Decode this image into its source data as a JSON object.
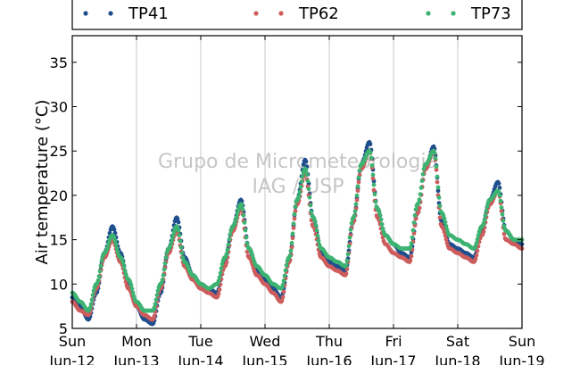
{
  "chart_data": {
    "type": "scatter",
    "ylabel": "Air temperature (°C)",
    "xlabel": "",
    "title": "",
    "ylim": [
      5,
      38
    ],
    "yticks": [
      5,
      10,
      15,
      20,
      25,
      30,
      35
    ],
    "xlim": [
      "2016-06-12",
      "2016-06-19"
    ],
    "x_tick_labels": [
      {
        "day": "Sun",
        "date": "Jun-12"
      },
      {
        "day": "Mon",
        "date": "Jun-13"
      },
      {
        "day": "Tue",
        "date": "Jun-14"
      },
      {
        "day": "Wed",
        "date": "Jun-15"
      },
      {
        "day": "Thu",
        "date": "Jun-16"
      },
      {
        "day": "Fri",
        "date": "Jun-17"
      },
      {
        "day": "Sat",
        "date": "Jun-18"
      },
      {
        "day": "Sun",
        "date": "Jun-19"
      }
    ],
    "grid": "vertical",
    "legend_position": "top",
    "watermark": [
      "Grupo de Micrometeorologia",
      "IAG / USP"
    ],
    "series": [
      {
        "name": "TP41",
        "color": "#1f4e8c",
        "points": [
          [
            "2016-06-12 00:00",
            8.5
          ],
          [
            "2016-06-12 03:00",
            7.5
          ],
          [
            "2016-06-12 06:00",
            6.0
          ],
          [
            "2016-06-12 09:00",
            9.0
          ],
          [
            "2016-06-12 12:00",
            13.5
          ],
          [
            "2016-06-12 15:00",
            16.5
          ],
          [
            "2016-06-12 18:00",
            13.5
          ],
          [
            "2016-06-12 21:00",
            10.0
          ],
          [
            "2016-06-13 00:00",
            7.5
          ],
          [
            "2016-06-13 03:00",
            6.0
          ],
          [
            "2016-06-13 06:00",
            5.5
          ],
          [
            "2016-06-13 09:00",
            9.0
          ],
          [
            "2016-06-13 12:00",
            14.0
          ],
          [
            "2016-06-13 15:00",
            17.5
          ],
          [
            "2016-06-13 18:00",
            13.0
          ],
          [
            "2016-06-13 21:00",
            11.0
          ],
          [
            "2016-06-14 00:00",
            10.0
          ],
          [
            "2016-06-14 03:00",
            9.5
          ],
          [
            "2016-06-14 06:00",
            9.0
          ],
          [
            "2016-06-14 09:00",
            12.5
          ],
          [
            "2016-06-14 12:00",
            16.5
          ],
          [
            "2016-06-14 15:00",
            19.5
          ],
          [
            "2016-06-14 18:00",
            14.0
          ],
          [
            "2016-06-14 21:00",
            11.5
          ],
          [
            "2016-06-15 00:00",
            10.5
          ],
          [
            "2016-06-15 03:00",
            9.5
          ],
          [
            "2016-06-15 06:00",
            8.5
          ],
          [
            "2016-06-15 09:00",
            12.5
          ],
          [
            "2016-06-15 12:00",
            19.5
          ],
          [
            "2016-06-15 15:00",
            24.0
          ],
          [
            "2016-06-15 18:00",
            17.5
          ],
          [
            "2016-06-15 21:00",
            13.5
          ],
          [
            "2016-06-16 00:00",
            12.5
          ],
          [
            "2016-06-16 03:00",
            12.0
          ],
          [
            "2016-06-16 06:00",
            11.5
          ],
          [
            "2016-06-16 09:00",
            17.0
          ],
          [
            "2016-06-16 12:00",
            23.5
          ],
          [
            "2016-06-16 15:00",
            26.0
          ],
          [
            "2016-06-16 18:00",
            18.5
          ],
          [
            "2016-06-16 21:00",
            15.5
          ],
          [
            "2016-06-17 00:00",
            14.5
          ],
          [
            "2016-06-17 03:00",
            13.5
          ],
          [
            "2016-06-17 06:00",
            13.0
          ],
          [
            "2016-06-17 09:00",
            18.0
          ],
          [
            "2016-06-17 12:00",
            23.0
          ],
          [
            "2016-06-17 15:00",
            25.5
          ],
          [
            "2016-06-17 18:00",
            17.0
          ],
          [
            "2016-06-17 21:00",
            14.5
          ],
          [
            "2016-06-18 00:00",
            14.0
          ],
          [
            "2016-06-18 03:00",
            13.5
          ],
          [
            "2016-06-18 06:00",
            13.0
          ],
          [
            "2016-06-18 09:00",
            16.0
          ],
          [
            "2016-06-18 12:00",
            19.5
          ],
          [
            "2016-06-18 15:00",
            21.5
          ],
          [
            "2016-06-18 18:00",
            16.0
          ],
          [
            "2016-06-18 21:00",
            15.0
          ],
          [
            "2016-06-19 00:00",
            14.5
          ]
        ]
      },
      {
        "name": "TP62",
        "color": "#cd5c5c",
        "points": [
          [
            "2016-06-12 00:00",
            8.0
          ],
          [
            "2016-06-12 03:00",
            7.0
          ],
          [
            "2016-06-12 06:00",
            6.5
          ],
          [
            "2016-06-12 09:00",
            9.5
          ],
          [
            "2016-06-12 12:00",
            13.0
          ],
          [
            "2016-06-12 15:00",
            15.0
          ],
          [
            "2016-06-12 18:00",
            12.5
          ],
          [
            "2016-06-12 21:00",
            9.5
          ],
          [
            "2016-06-13 00:00",
            7.5
          ],
          [
            "2016-06-13 03:00",
            6.5
          ],
          [
            "2016-06-13 06:00",
            6.0
          ],
          [
            "2016-06-13 09:00",
            9.5
          ],
          [
            "2016-06-13 12:00",
            13.5
          ],
          [
            "2016-06-13 15:00",
            16.0
          ],
          [
            "2016-06-13 18:00",
            12.0
          ],
          [
            "2016-06-13 21:00",
            10.5
          ],
          [
            "2016-06-14 00:00",
            9.5
          ],
          [
            "2016-06-14 03:00",
            9.0
          ],
          [
            "2016-06-14 06:00",
            8.5
          ],
          [
            "2016-06-14 09:00",
            12.0
          ],
          [
            "2016-06-14 12:00",
            16.0
          ],
          [
            "2016-06-14 15:00",
            18.5
          ],
          [
            "2016-06-14 18:00",
            13.0
          ],
          [
            "2016-06-14 21:00",
            11.0
          ],
          [
            "2016-06-15 00:00",
            10.0
          ],
          [
            "2016-06-15 03:00",
            9.0
          ],
          [
            "2016-06-15 06:00",
            8.0
          ],
          [
            "2016-06-15 09:00",
            12.5
          ],
          [
            "2016-06-15 12:00",
            19.0
          ],
          [
            "2016-06-15 15:00",
            22.5
          ],
          [
            "2016-06-15 18:00",
            16.5
          ],
          [
            "2016-06-15 21:00",
            13.0
          ],
          [
            "2016-06-16 00:00",
            12.0
          ],
          [
            "2016-06-16 03:00",
            11.5
          ],
          [
            "2016-06-16 06:00",
            11.0
          ],
          [
            "2016-06-16 09:00",
            17.0
          ],
          [
            "2016-06-16 12:00",
            23.0
          ],
          [
            "2016-06-16 15:00",
            25.0
          ],
          [
            "2016-06-16 18:00",
            17.5
          ],
          [
            "2016-06-16 21:00",
            14.5
          ],
          [
            "2016-06-17 00:00",
            13.5
          ],
          [
            "2016-06-17 03:00",
            13.0
          ],
          [
            "2016-06-17 06:00",
            12.5
          ],
          [
            "2016-06-17 09:00",
            18.0
          ],
          [
            "2016-06-17 12:00",
            23.0
          ],
          [
            "2016-06-17 15:00",
            25.0
          ],
          [
            "2016-06-17 18:00",
            16.5
          ],
          [
            "2016-06-17 21:00",
            14.0
          ],
          [
            "2016-06-18 00:00",
            13.5
          ],
          [
            "2016-06-18 03:00",
            13.0
          ],
          [
            "2016-06-18 06:00",
            12.5
          ],
          [
            "2016-06-18 09:00",
            15.5
          ],
          [
            "2016-06-18 12:00",
            19.0
          ],
          [
            "2016-06-18 15:00",
            20.5
          ],
          [
            "2016-06-18 18:00",
            15.0
          ],
          [
            "2016-06-18 21:00",
            14.5
          ],
          [
            "2016-06-19 00:00",
            14.0
          ]
        ]
      },
      {
        "name": "TP73",
        "color": "#3cb371",
        "points": [
          [
            "2016-06-12 00:00",
            9.0
          ],
          [
            "2016-06-12 03:00",
            8.0
          ],
          [
            "2016-06-12 06:00",
            7.0
          ],
          [
            "2016-06-12 09:00",
            10.0
          ],
          [
            "2016-06-12 12:00",
            13.5
          ],
          [
            "2016-06-12 15:00",
            15.5
          ],
          [
            "2016-06-12 18:00",
            13.0
          ],
          [
            "2016-06-12 21:00",
            10.5
          ],
          [
            "2016-06-13 00:00",
            8.0
          ],
          [
            "2016-06-13 03:00",
            7.0
          ],
          [
            "2016-06-13 06:00",
            7.0
          ],
          [
            "2016-06-13 09:00",
            10.0
          ],
          [
            "2016-06-13 12:00",
            14.0
          ],
          [
            "2016-06-13 15:00",
            16.5
          ],
          [
            "2016-06-13 18:00",
            12.5
          ],
          [
            "2016-06-13 21:00",
            11.0
          ],
          [
            "2016-06-14 00:00",
            10.0
          ],
          [
            "2016-06-14 03:00",
            9.5
          ],
          [
            "2016-06-14 06:00",
            10.0
          ],
          [
            "2016-06-14 09:00",
            13.0
          ],
          [
            "2016-06-14 12:00",
            16.5
          ],
          [
            "2016-06-14 15:00",
            19.0
          ],
          [
            "2016-06-14 18:00",
            14.0
          ],
          [
            "2016-06-14 21:00",
            12.0
          ],
          [
            "2016-06-15 00:00",
            11.0
          ],
          [
            "2016-06-15 03:00",
            10.0
          ],
          [
            "2016-06-15 06:00",
            9.5
          ],
          [
            "2016-06-15 09:00",
            13.0
          ],
          [
            "2016-06-15 12:00",
            19.5
          ],
          [
            "2016-06-15 15:00",
            23.0
          ],
          [
            "2016-06-15 18:00",
            17.5
          ],
          [
            "2016-06-15 21:00",
            14.0
          ],
          [
            "2016-06-16 00:00",
            13.0
          ],
          [
            "2016-06-16 03:00",
            12.5
          ],
          [
            "2016-06-16 06:00",
            12.0
          ],
          [
            "2016-06-16 09:00",
            17.5
          ],
          [
            "2016-06-16 12:00",
            23.5
          ],
          [
            "2016-06-16 15:00",
            25.0
          ],
          [
            "2016-06-16 18:00",
            18.5
          ],
          [
            "2016-06-16 21:00",
            15.5
          ],
          [
            "2016-06-17 00:00",
            14.5
          ],
          [
            "2016-06-17 03:00",
            14.0
          ],
          [
            "2016-06-17 06:00",
            14.0
          ],
          [
            "2016-06-17 09:00",
            19.0
          ],
          [
            "2016-06-17 12:00",
            23.5
          ],
          [
            "2016-06-17 15:00",
            25.0
          ],
          [
            "2016-06-17 18:00",
            18.0
          ],
          [
            "2016-06-17 21:00",
            15.5
          ],
          [
            "2016-06-18 00:00",
            15.0
          ],
          [
            "2016-06-18 03:00",
            14.5
          ],
          [
            "2016-06-18 06:00",
            14.0
          ],
          [
            "2016-06-18 09:00",
            16.5
          ],
          [
            "2016-06-18 12:00",
            19.5
          ],
          [
            "2016-06-18 15:00",
            20.5
          ],
          [
            "2016-06-18 18:00",
            16.0
          ],
          [
            "2016-06-18 21:00",
            15.0
          ],
          [
            "2016-06-19 00:00",
            15.0
          ]
        ]
      }
    ]
  }
}
